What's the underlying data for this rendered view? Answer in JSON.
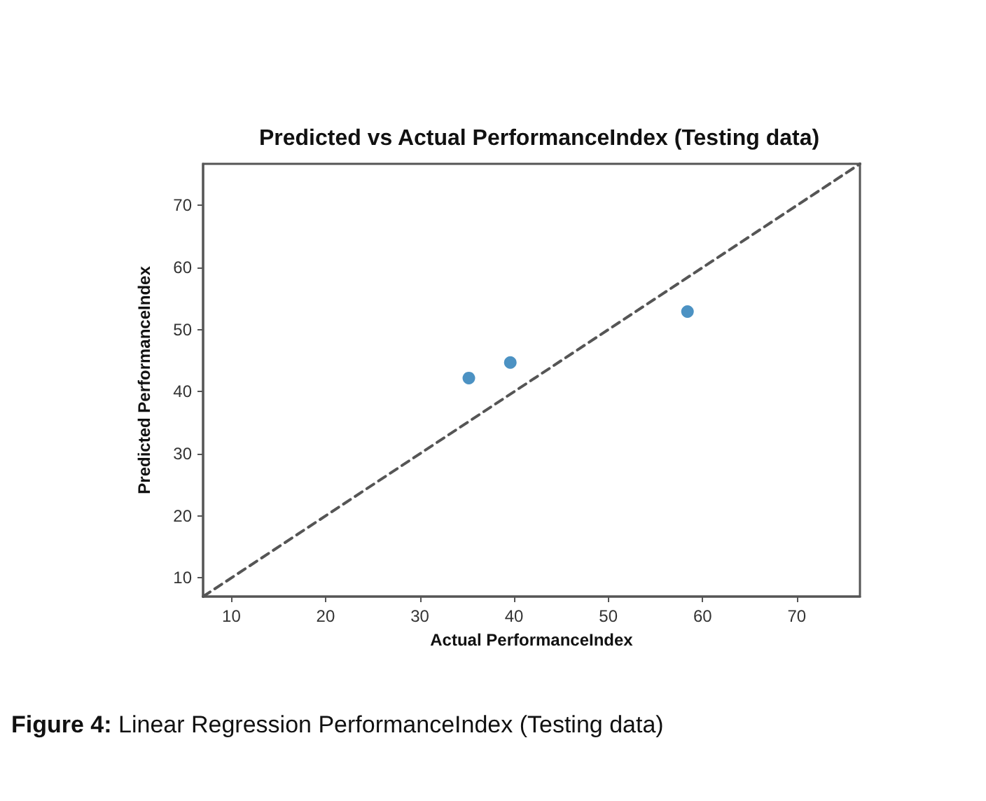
{
  "chart_data": {
    "type": "scatter",
    "title": "Predicted vs Actual PerformanceIndex (Testing data)",
    "xlabel": "Actual PerformanceIndex",
    "ylabel": "Predicted PerformanceIndex",
    "annotations": [
      "Figure 4: Linear Regression PerformanceIndex (Testing data)"
    ],
    "series": [
      {
        "color": "#1f77b4",
        "x": [
          35.2,
          39.6,
          58.4
        ],
        "values": [
          42.2,
          44.7,
          52.9
        ],
        "marker": "circle"
      },
      {
        "type": "line",
        "color": "#555555",
        "x": [
          7,
          76.7
        ],
        "values": [
          7,
          76.7
        ],
        "line_style": "dashed",
        "marker": "none"
      }
    ],
    "xlim": [
      7,
      76.7
    ],
    "ylim": [
      7,
      76.7
    ],
    "xticks": [
      10,
      20,
      30,
      40,
      50,
      60,
      70
    ],
    "yticks": [
      10,
      20,
      30,
      40,
      50,
      60,
      70
    ],
    "grid": false
  }
}
